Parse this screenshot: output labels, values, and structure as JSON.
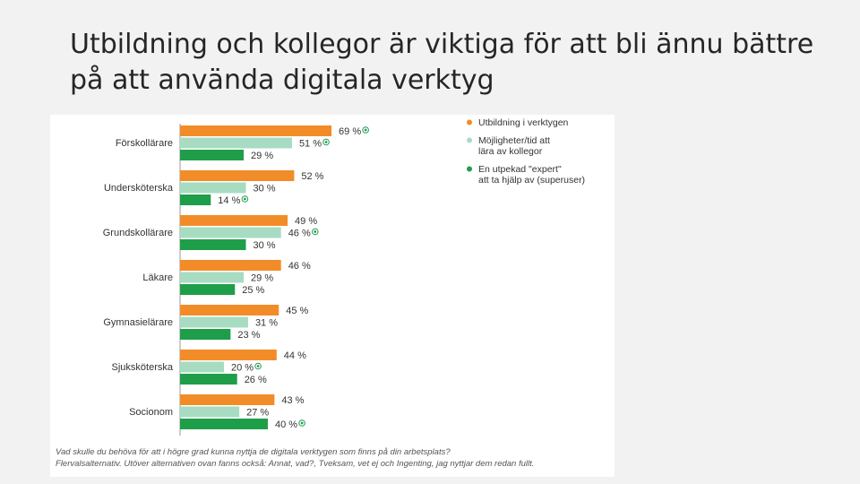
{
  "slide": {
    "title": "Utbildning och kollegor är viktiga för att bli ännu bättre på att använda digitala verktyg"
  },
  "footnote": {
    "question": "Vad skulle du behöva för att i högre grad kunna nyttja de digitala verktygen som finns på din arbetsplats?",
    "note": "Flervalsalternativ. Utöver alternativen ovan fanns också: Annat, vad?, Tveksam, vet ej och Ingenting, jag nyttjar dem redan fullt."
  },
  "chart_data": {
    "type": "bar",
    "orientation": "horizontal",
    "value_suffix": " %",
    "categories": [
      "Förskollärare",
      "Undersköterska",
      "Grundskollärare",
      "Läkare",
      "Gymnasielärare",
      "Sjuksköterska",
      "Socionom"
    ],
    "series": [
      {
        "name": [
          "Utbildning i verktygen"
        ],
        "color": "#f28c28",
        "values": [
          69,
          52,
          49,
          46,
          45,
          44,
          43
        ]
      },
      {
        "name": [
          "Möjligheter/tid att",
          "lära av kollegor"
        ],
        "color": "#a8dcc2",
        "values": [
          51,
          30,
          46,
          29,
          31,
          20,
          27
        ]
      },
      {
        "name": [
          "En utpekad \"expert\"",
          "att ta hjälp av (superuser)"
        ],
        "color": "#1f9e4a",
        "values": [
          29,
          14,
          30,
          25,
          23,
          26,
          40
        ]
      }
    ],
    "highlighted": [
      {
        "category": 0,
        "series": 0
      },
      {
        "category": 0,
        "series": 1
      },
      {
        "category": 1,
        "series": 2
      },
      {
        "category": 2,
        "series": 1
      },
      {
        "category": 5,
        "series": 1
      },
      {
        "category": 6,
        "series": 2
      }
    ],
    "highlight_color": "#1f9e4a",
    "legend_position": "top-right",
    "grid": false
  }
}
